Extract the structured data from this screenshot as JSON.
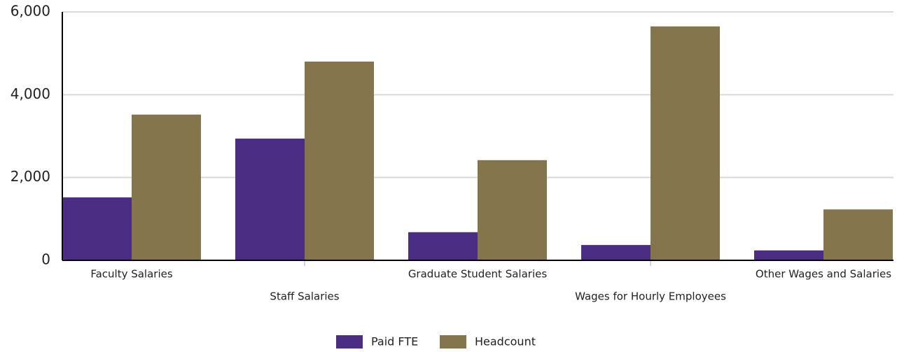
{
  "chart_data": {
    "type": "bar",
    "categories": [
      "Faculty Salaries",
      "Staff Salaries",
      "Graduate Student Salaries",
      "Wages for Hourly Employees",
      "Other Wages and Salaries"
    ],
    "series": [
      {
        "name": "Paid FTE",
        "color": "#4b2e83",
        "values": [
          1520,
          2940,
          680,
          370,
          240
        ]
      },
      {
        "name": "Headcount",
        "color": "#85754d",
        "values": [
          3520,
          4800,
          2420,
          5650,
          1230
        ]
      }
    ],
    "ylim": [
      0,
      6000
    ],
    "yticks": [
      0,
      {
        "value": 2000,
        "label": "2,000"
      },
      {
        "value": 4000,
        "label": "4,000"
      },
      {
        "value": 6000,
        "label": "6,000"
      }
    ],
    "grid": true,
    "legend": "bottom"
  }
}
